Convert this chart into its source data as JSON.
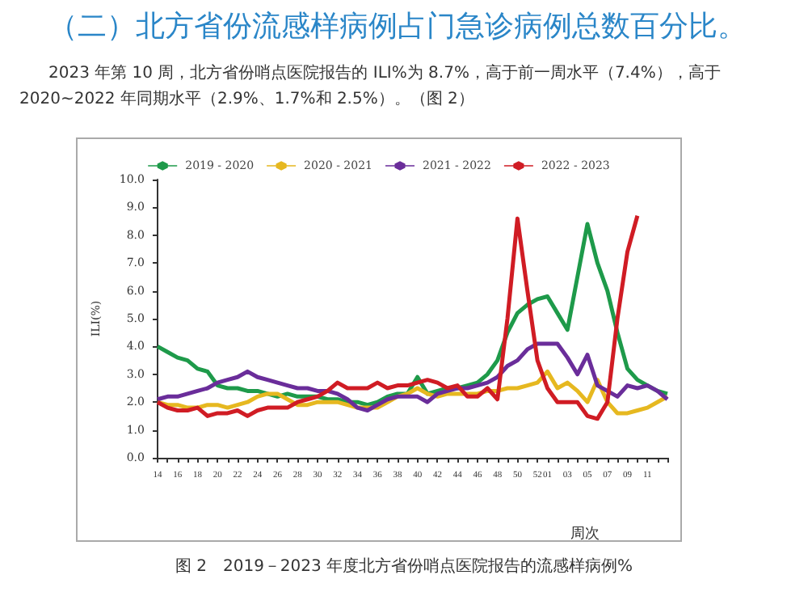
{
  "chart_data": {
    "type": "line",
    "title": "（二）北方省份流感样病例占门急诊病例总数百分比。",
    "subtitle": "2023 年第 10 周，北方省份哨点医院报告的 ILI%为 8.7%，高于前一周水平（7.4%），高于 2020~2022 年同期水平（2.9%、1.7%和 2.5%）。（图 2）",
    "xlabel": "周次",
    "ylabel": "ILI(%)",
    "annotations": [
      "图 2　2019－2023 年度北方省份哨点医院报告的流感样病例%"
    ],
    "categories": [
      "14",
      null,
      "16",
      null,
      "18",
      null,
      "20",
      null,
      "22",
      null,
      "24",
      null,
      "26",
      null,
      "28",
      null,
      "30",
      null,
      "32",
      null,
      "34",
      null,
      "36",
      null,
      "38",
      null,
      "40",
      null,
      "42",
      null,
      "44",
      null,
      "46",
      null,
      "48",
      null,
      "50",
      null,
      "52",
      "01",
      null,
      "03",
      null,
      "05",
      null,
      "07",
      null,
      "09",
      null,
      "11",
      null,
      null
    ],
    "series": [
      {
        "name": "2019 - 2020",
        "color": "#1e9a4a",
        "values": [
          4.0,
          3.8,
          3.6,
          3.5,
          3.2,
          3.1,
          2.6,
          2.5,
          2.5,
          2.4,
          2.4,
          2.3,
          2.2,
          2.3,
          2.2,
          2.2,
          2.2,
          2.1,
          2.1,
          2.0,
          2.0,
          1.9,
          2.0,
          2.2,
          2.3,
          2.3,
          2.9,
          2.3,
          2.4,
          2.5,
          2.5,
          2.6,
          2.7,
          3.0,
          3.5,
          4.5,
          5.2,
          5.5,
          5.7,
          5.8,
          5.2,
          4.6,
          6.5,
          8.4,
          7.0,
          6.0,
          4.5,
          3.2,
          2.8,
          2.6,
          2.4,
          2.3
        ]
      },
      {
        "name": "2020 - 2021",
        "color": "#e6b820",
        "values": [
          2.0,
          1.9,
          1.9,
          1.8,
          1.8,
          1.9,
          1.9,
          1.8,
          1.9,
          2.0,
          2.2,
          2.3,
          2.3,
          2.1,
          1.9,
          1.9,
          2.0,
          2.0,
          2.0,
          1.9,
          1.8,
          1.8,
          1.8,
          2.0,
          2.2,
          2.3,
          2.5,
          2.3,
          2.2,
          2.3,
          2.3,
          2.3,
          2.3,
          2.4,
          2.4,
          2.5,
          2.5,
          2.6,
          2.7,
          3.1,
          2.5,
          2.7,
          2.4,
          2.0,
          2.8,
          2.0,
          1.6,
          1.6,
          1.7,
          1.8,
          2.0,
          2.2
        ]
      },
      {
        "name": "2021 - 2022",
        "color": "#6a2d9a",
        "values": [
          2.1,
          2.2,
          2.2,
          2.3,
          2.4,
          2.5,
          2.7,
          2.8,
          2.9,
          3.1,
          2.9,
          2.8,
          2.7,
          2.6,
          2.5,
          2.5,
          2.4,
          2.4,
          2.3,
          2.1,
          1.8,
          1.7,
          1.9,
          2.1,
          2.2,
          2.2,
          2.2,
          2.0,
          2.3,
          2.4,
          2.5,
          2.5,
          2.6,
          2.7,
          2.9,
          3.3,
          3.5,
          3.9,
          4.1,
          4.1,
          4.1,
          3.6,
          3.0,
          3.7,
          2.6,
          2.4,
          2.2,
          2.6,
          2.5,
          2.6,
          2.4,
          2.1
        ]
      },
      {
        "name": "2022 - 2023",
        "color": "#d01c24",
        "values": [
          2.0,
          1.8,
          1.7,
          1.7,
          1.8,
          1.5,
          1.6,
          1.6,
          1.7,
          1.5,
          1.7,
          1.8,
          1.8,
          1.8,
          2.0,
          2.1,
          2.2,
          2.4,
          2.7,
          2.5,
          2.5,
          2.5,
          2.7,
          2.5,
          2.6,
          2.6,
          2.7,
          2.8,
          2.7,
          2.5,
          2.6,
          2.2,
          2.2,
          2.5,
          2.1,
          5.0,
          8.6,
          6.0,
          3.5,
          2.5,
          2.0,
          2.0,
          2.0,
          1.5,
          1.4,
          2.0,
          5.0,
          7.4,
          8.7,
          null,
          null,
          null
        ]
      }
    ],
    "ylim": [
      0,
      10
    ],
    "yticks": [
      {
        "value": 0,
        "label": "0.0"
      },
      {
        "value": 1,
        "label": "1.0"
      },
      {
        "value": 2,
        "label": "2.0"
      },
      {
        "value": 3,
        "label": "3.0"
      },
      {
        "value": 4,
        "label": "4.0"
      },
      {
        "value": 5,
        "label": "5.0"
      },
      {
        "value": 6,
        "label": "6.0"
      },
      {
        "value": 7,
        "label": "7.0"
      },
      {
        "value": 8,
        "label": "8.0"
      },
      {
        "value": 9,
        "label": "9.0"
      },
      {
        "value": 10,
        "label": "10.0"
      }
    ],
    "grid": false,
    "legend": "top",
    "marker": "none",
    "line_style": "solid"
  }
}
